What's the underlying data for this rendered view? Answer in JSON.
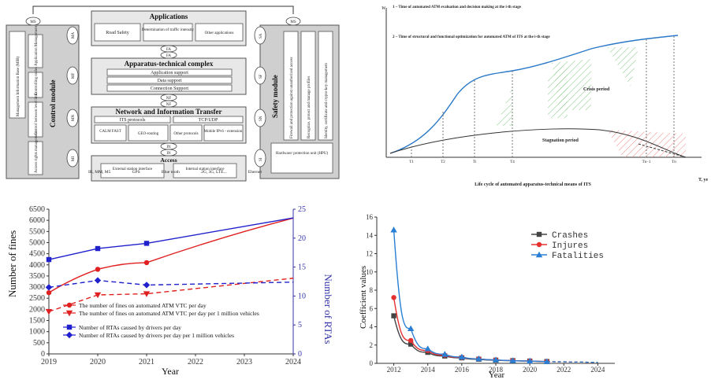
{
  "diagram": {
    "top_ms": "MS",
    "left_outer_labels": [
      "Management Information Base (MIB)",
      "Application Management",
      "Controlling nodes",
      "Control between level links",
      "Access rights management"
    ],
    "control_module": "Control module",
    "safety_module": "Safety module",
    "right_inner_labels": [
      "Firewall and protection against unauthorized access",
      "Recognize, protect and manage profiles",
      "Identity, certificate and crypto-key management"
    ],
    "left_ports": [
      "MA",
      "MF",
      "MN",
      "MI"
    ],
    "right_ports": [
      "SA",
      "SF",
      "SN",
      "SI"
    ],
    "applications": {
      "title": "Applications",
      "items": [
        "Road Safety",
        "Determination of traffic intensity",
        "Other applications"
      ]
    },
    "fa": "FA",
    "apparatus": {
      "title": "Apparatus-technical  complex",
      "items": [
        "Application support",
        "Data support",
        "Connection Support"
      ]
    },
    "nf": "NF",
    "network": {
      "title": "Network and Information Transfer",
      "items": [
        "ITS protocols",
        "TCP/UDP",
        "CALM FAST",
        "GEO-routing",
        "Other protocols",
        "Mobile IPv6 - extension"
      ]
    },
    "in": "IN",
    "access": {
      "title": "Access",
      "items": [
        "External station interface",
        "Internal station interface"
      ]
    },
    "hipu": "Hardware/ protection unit (HPU)",
    "bottom_links": [
      "IR, MM, M5",
      "GPS",
      "Blue tooth",
      "2G, 3G, LTE...",
      "Ehernet"
    ]
  },
  "lifecycle": {
    "y_label": "W",
    "legend1": "1 – Time of automated ATM evaluation and decision making at the i-th stage",
    "legend2": "2 – Time of structural and functional optimization for automated ATM of ITS at the i-th stage",
    "crisis": "Crisis period",
    "stagnation": "Stagnation period",
    "x_label": "Life cycle of automated apparatus-technical means of ITS",
    "x_axis_unit": "T, ye",
    "t_ticks": [
      "T1",
      "T2",
      "Ti",
      "T4",
      "Tn−1",
      "Tn"
    ]
  },
  "chart_data": [
    {
      "type": "line",
      "x": [
        2019,
        2020,
        2021,
        2024
      ],
      "xlabel": "Year",
      "ylabel": "Number of fines",
      "y2label": "Number of RTAs",
      "ylim": [
        0,
        6500
      ],
      "y2lim": [
        0,
        25
      ],
      "xlim": [
        2019,
        2024
      ],
      "x_ticks": [
        "2019",
        "2020",
        "2021",
        "2022",
        "2023",
        "2024"
      ],
      "y_ticks": [
        "0",
        "500",
        "1000",
        "1500",
        "2000",
        "2500",
        "3000",
        "3500",
        "4000",
        "4500",
        "5000",
        "5500",
        "6000",
        "6500"
      ],
      "y2_ticks": [
        "0",
        "5",
        "10",
        "15",
        "20",
        "25"
      ],
      "series": [
        {
          "name": "The number of fines on automated ATM VTC per day",
          "color": "#e02020",
          "marker": "circle",
          "axis": "left",
          "values": [
            2750,
            3800,
            4100,
            6100
          ],
          "style": "solid"
        },
        {
          "name": "The number of fines on automated ATM VTC per day per 1 million vehicles",
          "color": "#e02020",
          "marker": "triangle-down",
          "axis": "left",
          "values": [
            1900,
            2650,
            2700,
            3400
          ],
          "style": "dashed"
        },
        {
          "name": "Number of RTAs caused by drivers per day",
          "color": "#2020cc",
          "marker": "square",
          "axis": "right",
          "values": [
            16.3,
            18.2,
            19.1,
            23.5
          ],
          "style": "solid"
        },
        {
          "name": "Number of RTAs caused by drivers per day per 1 million vehicles",
          "color": "#2020cc",
          "marker": "diamond",
          "axis": "right",
          "values": [
            11.5,
            12.7,
            11.9,
            12.4
          ],
          "style": "dashed"
        }
      ]
    },
    {
      "type": "line",
      "x": [
        2012,
        2013,
        2014,
        2015,
        2016,
        2017,
        2018,
        2019,
        2020,
        2021,
        2022,
        2023,
        2024
      ],
      "xlabel": "Year",
      "ylabel": "Coefficient values",
      "ylim": [
        0,
        16
      ],
      "xlim": [
        2011,
        2025
      ],
      "x_ticks": [
        "2012",
        "2014",
        "2016",
        "2018",
        "2020",
        "2022",
        "2024"
      ],
      "y_ticks": [
        "0",
        "2",
        "4",
        "6",
        "8",
        "10",
        "12",
        "14",
        "16"
      ],
      "legend_position": "top-right",
      "series": [
        {
          "name": "Crashes",
          "color": "#444444",
          "marker": "square",
          "values": [
            5.2,
            2.1,
            1.2,
            0.8,
            0.6,
            0.45,
            0.35,
            0.3,
            0.25,
            0.2,
            0.17,
            0.14,
            0.12
          ]
        },
        {
          "name": "Injures",
          "color": "#e53030",
          "marker": "circle",
          "values": [
            7.2,
            2.5,
            1.4,
            0.9,
            0.65,
            0.5,
            0.38,
            0.31,
            0.26,
            0.2,
            0.17,
            0.14,
            0.12
          ]
        },
        {
          "name": "Fatalities",
          "color": "#2a7fd4",
          "marker": "triangle",
          "values": [
            14.6,
            3.8,
            1.6,
            1.0,
            0.7,
            0.5,
            0.38,
            0.31,
            0.26,
            0.2,
            0.17,
            0.14,
            0.12
          ]
        }
      ],
      "solid_until": 2021
    }
  ]
}
